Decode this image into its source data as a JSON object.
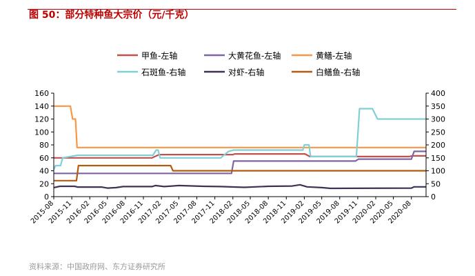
{
  "header": {
    "title": "图 50：部分特种鱼大宗价（元/千克）"
  },
  "footer": {
    "source": "资料来源：中国政府网、东方证券研究所"
  },
  "colors": {
    "title_red": "#c00000",
    "jiayu": "#c0504d",
    "dahuanghua": "#8064a2",
    "huangshan": "#f79646",
    "shiban": "#7fcfd4",
    "duixia": "#3f3151",
    "baishan": "#b25b0f"
  },
  "chart_data": {
    "type": "line",
    "title": "",
    "xlabel": "",
    "ylabel": "",
    "x_ticks": [
      "2015-08",
      "2015-11",
      "2016-02",
      "2016-05",
      "2016-08",
      "2016-11",
      "2017-02",
      "2017-05",
      "2017-08",
      "2017-11",
      "2018-02",
      "2018-05",
      "2018-08",
      "2018-11",
      "2019-02",
      "2019-05",
      "2019-08",
      "2019-11",
      "2020-02",
      "2020-05",
      "2020-08"
    ],
    "x_range": [
      "2015-08-01",
      "2020-10-15"
    ],
    "ylim_left": [
      0,
      160
    ],
    "yticks_left": [
      "0",
      "20",
      "40",
      "60",
      "80",
      "100",
      "120",
      "140",
      "160"
    ],
    "ylim_right": [
      0,
      400
    ],
    "yticks_right": [
      "0",
      "50",
      "100",
      "150",
      "200",
      "250",
      "300",
      "350",
      "400"
    ],
    "grid": false,
    "legend": "top",
    "series": [
      {
        "name": "甲鱼-左轴",
        "axis": "left",
        "color_key": "jiayu",
        "points": [
          [
            "2015-08-01",
            60
          ],
          [
            "2016-12-15",
            60
          ],
          [
            "2017-01-20",
            65
          ],
          [
            "2018-02-01",
            65
          ],
          [
            "2018-02-10",
            66
          ],
          [
            "2019-02-05",
            66
          ],
          [
            "2019-03-01",
            62
          ],
          [
            "2020-07-20",
            62
          ],
          [
            "2020-08-05",
            63
          ],
          [
            "2020-10-15",
            63
          ]
        ]
      },
      {
        "name": "大黄花鱼-左轴",
        "axis": "left",
        "color_key": "dahuanghua",
        "points": [
          [
            "2015-08-01",
            36
          ],
          [
            "2018-01-25",
            36
          ],
          [
            "2018-02-05",
            55
          ],
          [
            "2019-10-20",
            55
          ],
          [
            "2019-11-05",
            58
          ],
          [
            "2020-08-01",
            58
          ],
          [
            "2020-08-15",
            70
          ],
          [
            "2020-10-15",
            70
          ]
        ]
      },
      {
        "name": "黄鳝-左轴",
        "axis": "left",
        "color_key": "huangshan",
        "points": [
          [
            "2015-08-01",
            140
          ],
          [
            "2015-10-25",
            140
          ],
          [
            "2015-11-05",
            120
          ],
          [
            "2015-11-20",
            120
          ],
          [
            "2015-11-28",
            76
          ],
          [
            "2020-10-15",
            76
          ]
        ]
      },
      {
        "name": "石斑鱼-右轴",
        "axis": "right",
        "color_key": "shiban",
        "points": [
          [
            "2015-08-01",
            105
          ],
          [
            "2015-08-10",
            120
          ],
          [
            "2015-09-05",
            120
          ],
          [
            "2015-09-15",
            150
          ],
          [
            "2015-12-01",
            160
          ],
          [
            "2016-12-20",
            160
          ],
          [
            "2017-01-05",
            180
          ],
          [
            "2017-01-15",
            180
          ],
          [
            "2017-01-25",
            150
          ],
          [
            "2017-12-01",
            150
          ],
          [
            "2018-01-10",
            175
          ],
          [
            "2018-02-05",
            180
          ],
          [
            "2019-01-25",
            180
          ],
          [
            "2019-02-01",
            200
          ],
          [
            "2019-02-25",
            200
          ],
          [
            "2019-03-05",
            155
          ],
          [
            "2019-10-25",
            155
          ],
          [
            "2019-11-10",
            340
          ],
          [
            "2020-01-15",
            340
          ],
          [
            "2020-02-10",
            300
          ],
          [
            "2020-10-15",
            300
          ]
        ]
      },
      {
        "name": "对虾-右轴",
        "axis": "right",
        "color_key": "duixia",
        "points": [
          [
            "2015-08-01",
            35
          ],
          [
            "2015-09-01",
            40
          ],
          [
            "2015-11-15",
            40
          ],
          [
            "2015-12-01",
            37
          ],
          [
            "2016-04-01",
            37
          ],
          [
            "2016-05-01",
            33
          ],
          [
            "2016-06-15",
            35
          ],
          [
            "2016-07-20",
            39
          ],
          [
            "2016-12-15",
            39
          ],
          [
            "2017-01-01",
            43
          ],
          [
            "2017-02-15",
            39
          ],
          [
            "2017-05-01",
            43
          ],
          [
            "2017-09-01",
            40
          ],
          [
            "2017-12-01",
            39
          ],
          [
            "2018-04-01",
            36
          ],
          [
            "2018-08-01",
            40
          ],
          [
            "2018-12-01",
            41
          ],
          [
            "2019-01-10",
            46
          ],
          [
            "2019-02-15",
            38
          ],
          [
            "2019-05-01",
            35
          ],
          [
            "2019-06-15",
            32
          ],
          [
            "2020-08-01",
            33
          ],
          [
            "2020-08-15",
            38
          ],
          [
            "2020-10-15",
            38
          ]
        ]
      },
      {
        "name": "白鳝鱼-右轴",
        "axis": "right",
        "color_key": "baishan",
        "points": [
          [
            "2015-08-01",
            62
          ],
          [
            "2015-11-25",
            62
          ],
          [
            "2015-12-05",
            120
          ],
          [
            "2017-03-20",
            120
          ],
          [
            "2017-04-01",
            100
          ],
          [
            "2020-10-15",
            100
          ]
        ]
      }
    ]
  }
}
